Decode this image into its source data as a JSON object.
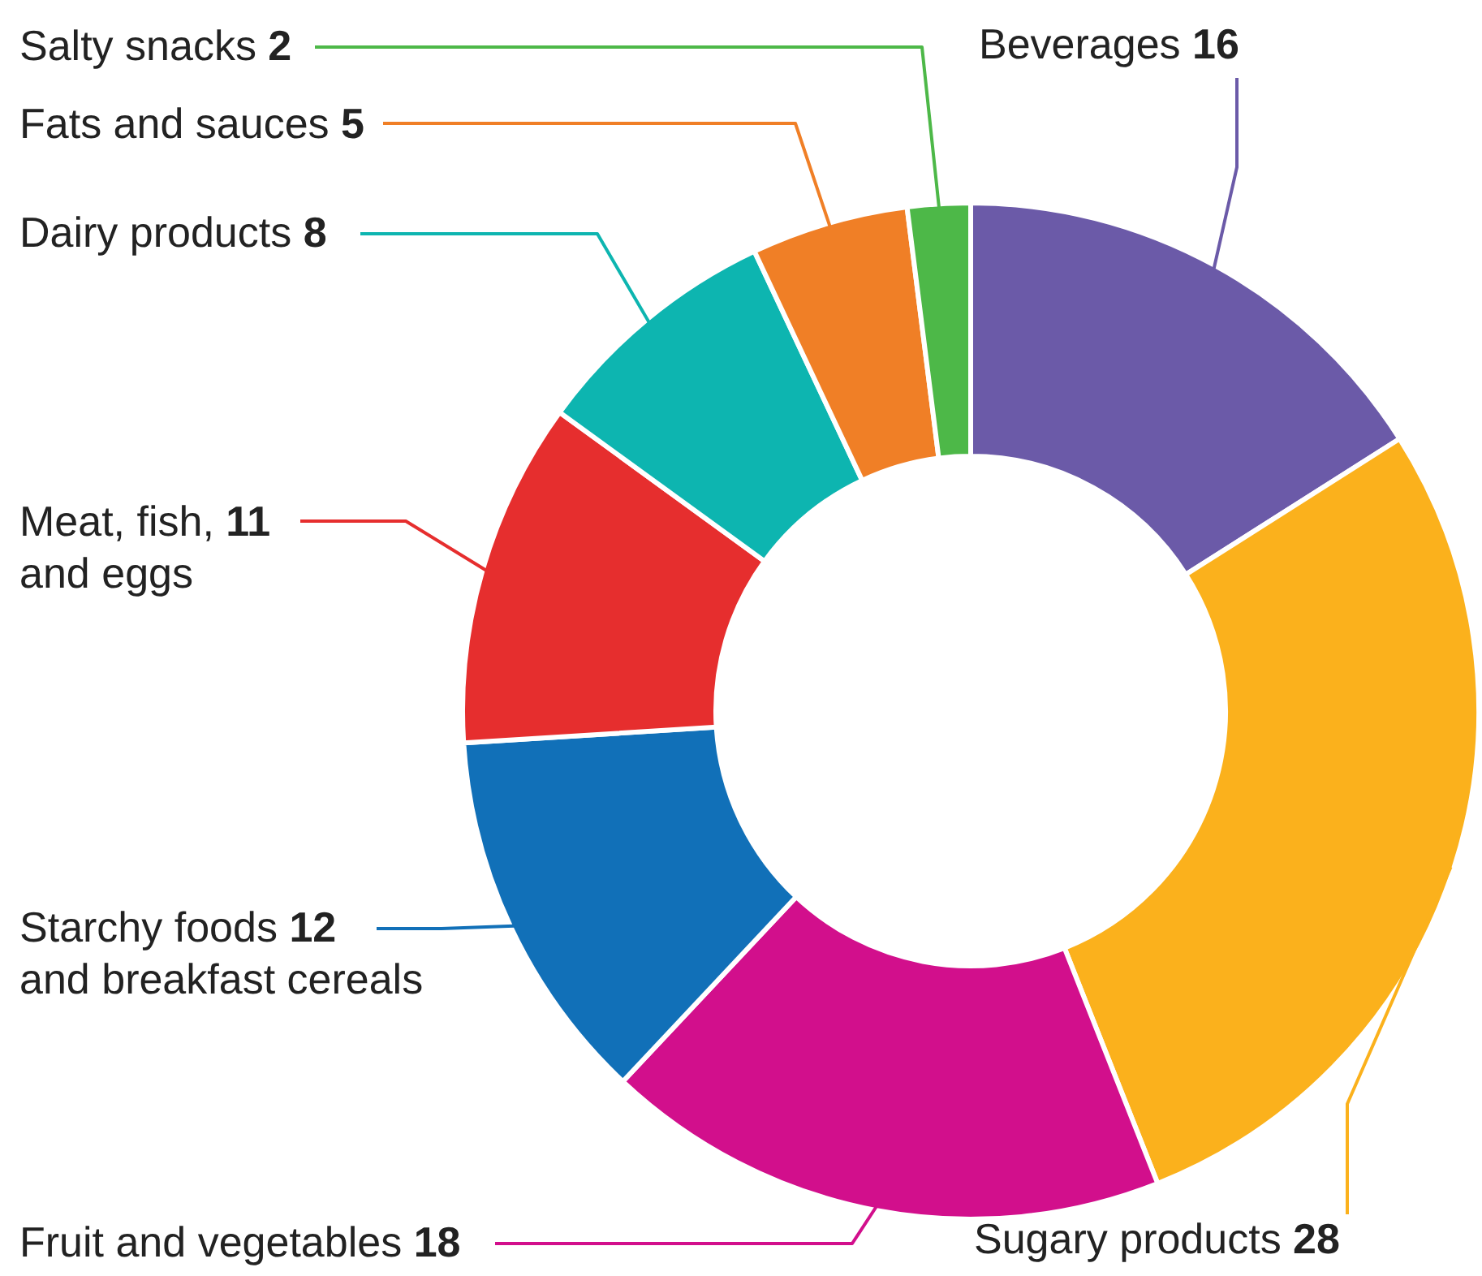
{
  "chart_data": {
    "type": "donut",
    "categories": [
      "Beverages",
      "Sugary products",
      "Fruit and vegetables",
      "Starchy foods and breakfast cereals",
      "Meat, fish, and eggs",
      "Dairy products",
      "Fats and sauces",
      "Salty snacks"
    ],
    "values": [
      16,
      28,
      18,
      12,
      11,
      8,
      5,
      2
    ],
    "colors": [
      "#6b5aa8",
      "#fbb11c",
      "#d20f8c",
      "#1170b8",
      "#e62e2e",
      "#0db5b0",
      "#f07f26",
      "#4db848"
    ],
    "data_labels": true
  }
}
